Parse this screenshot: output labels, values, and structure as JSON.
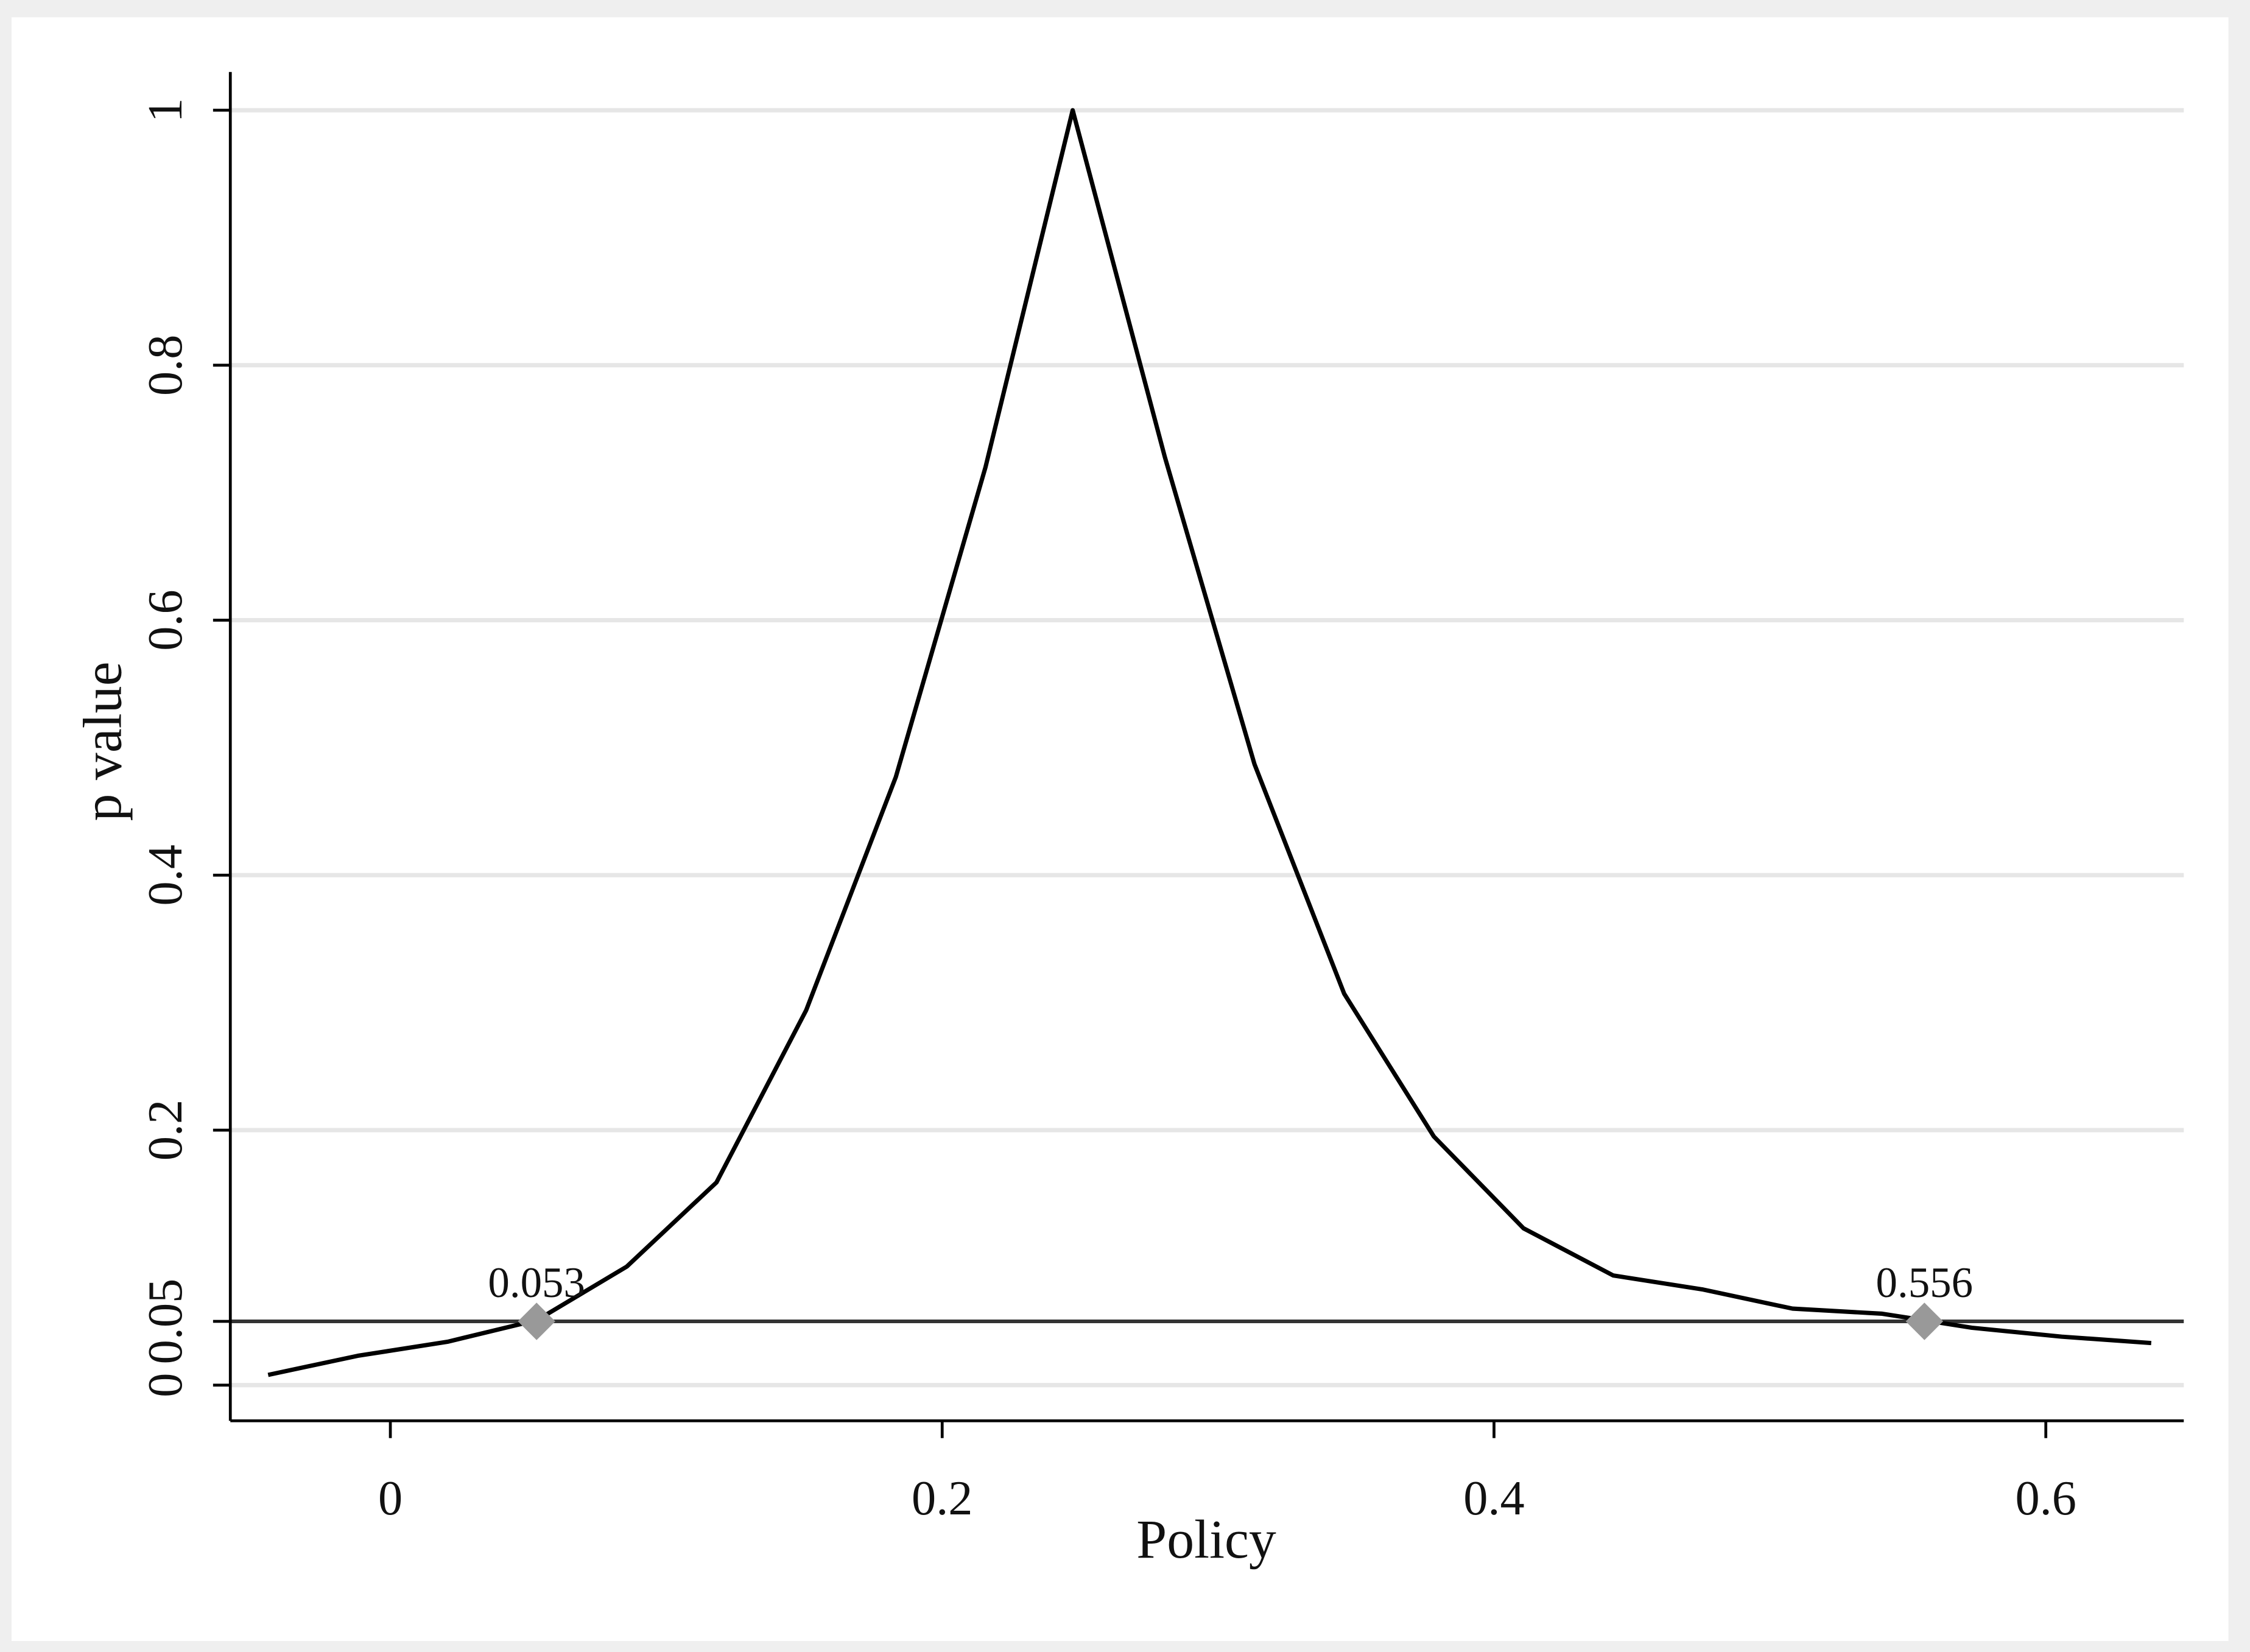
{
  "chart_data": {
    "type": "line",
    "x_label": "Policy",
    "y_label": "p value",
    "xlim": [
      -0.058,
      0.65
    ],
    "ylim": [
      -0.028,
      1.03
    ],
    "xticks": [
      0,
      0.2,
      0.4,
      0.6
    ],
    "yticks": [
      0,
      0.05,
      0.2,
      0.4,
      0.6,
      0.8,
      1
    ],
    "grid": true,
    "reference_line": 0.05,
    "series": [
      {
        "color": "#000000",
        "x": [
          -0.0443,
          -0.0118,
          0.0207,
          0.0532,
          0.0857,
          0.1182,
          0.1507,
          0.1832,
          0.2157,
          0.2473,
          0.2807,
          0.3132,
          0.3457,
          0.3782,
          0.4107,
          0.4432,
          0.4757,
          0.5082,
          0.5407,
          0.5732,
          0.6057,
          0.6382
        ],
        "values": [
          0.008,
          0.023,
          0.034,
          0.051,
          0.093,
          0.159,
          0.294,
          0.477,
          0.72,
          1.0,
          0.728,
          0.487,
          0.307,
          0.195,
          0.123,
          0.086,
          0.075,
          0.06,
          0.056,
          0.045,
          0.038,
          0.033
        ]
      }
    ],
    "markers": {
      "color": "#999999",
      "x": [
        0.053,
        0.556
      ],
      "values": [
        0.05,
        0.05
      ]
    }
  }
}
